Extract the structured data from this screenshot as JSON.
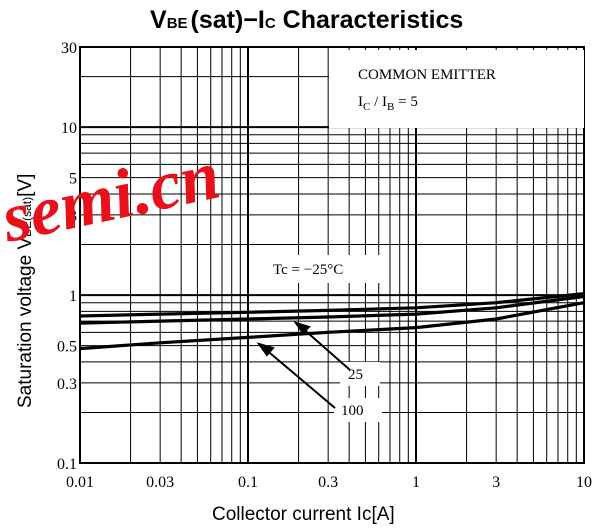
{
  "chart_data": {
    "type": "line",
    "title_main": "V",
    "title_sub": "BE",
    "title_paren": "(sat)",
    "title_dash": "−I",
    "title_c": "C",
    "title_rest": " Characteristics",
    "xlabel": "Collector current   Ic[A]",
    "ylabel": "Saturation voltage  V",
    "ylabel_sub": "BE(sat)",
    "ylabel_unit": "[V]",
    "x_scale": "log",
    "y_scale": "log",
    "xlim": [
      0.01,
      10
    ],
    "ylim": [
      0.1,
      30
    ],
    "grid": true,
    "x_ticks": [
      {
        "v": 0.01,
        "label": "0.01"
      },
      {
        "v": 0.03,
        "label": "0.03"
      },
      {
        "v": 0.1,
        "label": "0.1"
      },
      {
        "v": 0.3,
        "label": "0.3"
      },
      {
        "v": 1,
        "label": "1"
      },
      {
        "v": 3,
        "label": "3"
      },
      {
        "v": 10,
        "label": "10"
      }
    ],
    "y_ticks": [
      {
        "v": 0.1,
        "label": "0.1"
      },
      {
        "v": 0.3,
        "label": "0.3"
      },
      {
        "v": 0.5,
        "label": "0.5"
      },
      {
        "v": 1,
        "label": "1"
      },
      {
        "v": 3,
        "label": "3"
      },
      {
        "v": 5,
        "label": "5"
      },
      {
        "v": 10,
        "label": "10"
      },
      {
        "v": 30,
        "label": "30"
      }
    ],
    "annotation_line1": "COMMON  EMITTER",
    "annotation_line2": "I",
    "annotation_line2_sub1": "C",
    "annotation_line2_mid": " / I",
    "annotation_line2_sub2": "B",
    "annotation_line2_end": " = 5",
    "series": [
      {
        "name": "Tc = −25°C",
        "x": [
          0.01,
          0.03,
          0.1,
          0.3,
          1,
          3,
          10
        ],
        "y": [
          0.75,
          0.77,
          0.79,
          0.81,
          0.84,
          0.9,
          1.02
        ]
      },
      {
        "name": "25",
        "x": [
          0.01,
          0.03,
          0.1,
          0.3,
          1,
          3,
          10
        ],
        "y": [
          0.68,
          0.7,
          0.72,
          0.74,
          0.77,
          0.84,
          0.98
        ]
      },
      {
        "name": "100",
        "x": [
          0.01,
          0.03,
          0.1,
          0.3,
          1,
          3,
          10
        ],
        "y": [
          0.48,
          0.52,
          0.56,
          0.6,
          0.64,
          0.72,
          0.9
        ]
      }
    ],
    "series_labels": [
      "Tc = −25°C",
      "25",
      "100"
    ]
  },
  "watermark": "semi.cn",
  "colors": {
    "ink": "#000000",
    "watermark": "#e8101a"
  }
}
